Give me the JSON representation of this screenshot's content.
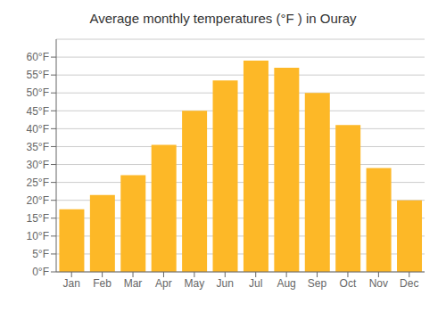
{
  "chart_data": {
    "type": "bar",
    "title": "Average monthly temperatures (°F ) in Ouray",
    "categories": [
      "Jan",
      "Feb",
      "Mar",
      "Apr",
      "May",
      "Jun",
      "Jul",
      "Aug",
      "Sep",
      "Oct",
      "Nov",
      "Dec"
    ],
    "values": [
      17.5,
      21.5,
      27.0,
      35.5,
      45.0,
      53.5,
      59.0,
      57.0,
      50.0,
      41.0,
      29.0,
      20.0
    ],
    "color": "#FDB827",
    "ylim": [
      0,
      65
    ],
    "yticks": [
      {
        "value": 0,
        "label": "0°F"
      },
      {
        "value": 5,
        "label": "5°F"
      },
      {
        "value": 10,
        "label": "10°F"
      },
      {
        "value": 15,
        "label": "15°F"
      },
      {
        "value": 20,
        "label": "20°F"
      },
      {
        "value": 25,
        "label": "25°F"
      },
      {
        "value": 30,
        "label": "30°F"
      },
      {
        "value": 35,
        "label": "35°F"
      },
      {
        "value": 40,
        "label": "40°F"
      },
      {
        "value": 45,
        "label": "45°F"
      },
      {
        "value": 50,
        "label": "50°F"
      },
      {
        "value": 55,
        "label": "55°F"
      },
      {
        "value": 60,
        "label": "60°F"
      }
    ],
    "grid": true
  }
}
